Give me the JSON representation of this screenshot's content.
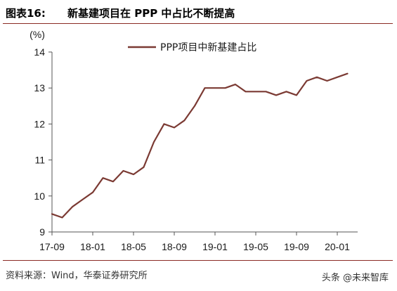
{
  "figure": {
    "label": "图表16:",
    "title": "新基建项目在 PPP 中占比不断提高",
    "source": "资料来源：Wind，华泰证券研究所",
    "watermark": "头条 @未来智库"
  },
  "colors": {
    "series": "#7b3a33",
    "rule": "#8b2b24",
    "axis": "#555555"
  },
  "chart_data": {
    "type": "line",
    "title": "",
    "xlabel": "",
    "ylabel": "(%)",
    "ylim": [
      9,
      14
    ],
    "yticks": [
      9,
      10,
      11,
      12,
      13,
      14
    ],
    "xticks": [
      "17-09",
      "18-01",
      "18-05",
      "18-09",
      "19-01",
      "19-05",
      "19-09",
      "20-01"
    ],
    "grid": false,
    "legend": "top-center",
    "x": [
      "17-09",
      "17-10",
      "17-11",
      "17-12",
      "18-01",
      "18-02",
      "18-03",
      "18-04",
      "18-05",
      "18-06",
      "18-07",
      "18-08",
      "18-09",
      "18-10",
      "18-11",
      "18-12",
      "19-01",
      "19-02",
      "19-03",
      "19-04",
      "19-05",
      "19-06",
      "19-07",
      "19-08",
      "19-09",
      "19-10",
      "19-11",
      "19-12",
      "20-01",
      "20-02"
    ],
    "series": [
      {
        "name": "PPP项目中新基建占比",
        "values": [
          9.5,
          9.4,
          9.7,
          9.9,
          10.1,
          10.5,
          10.4,
          10.7,
          10.6,
          10.8,
          11.5,
          12.0,
          11.9,
          12.1,
          12.5,
          13.0,
          13.0,
          13.0,
          13.1,
          12.9,
          12.9,
          12.9,
          12.8,
          12.9,
          12.8,
          13.2,
          13.3,
          13.2,
          13.3,
          13.4
        ]
      }
    ]
  }
}
